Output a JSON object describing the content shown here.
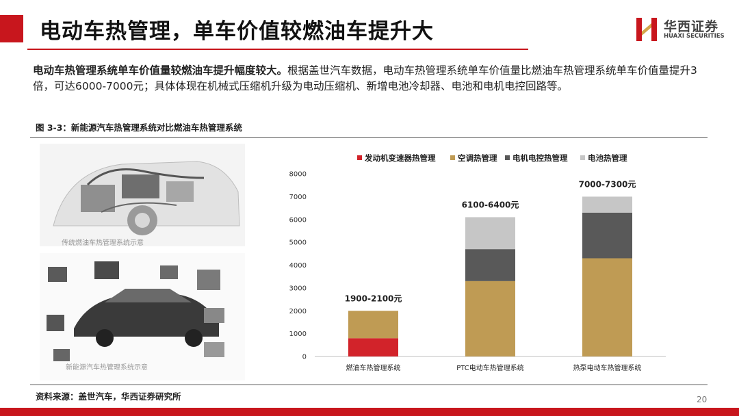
{
  "header": {
    "title": "电动车热管理，单车价值较燃油车提升大",
    "logo_cn": "华西证券",
    "logo_en": "HUAXI SECURITIES"
  },
  "summary": {
    "bold": "电动车热管理系统单车价值量较燃油车提升幅度较大。",
    "text": "根据盖世汽车数据，电动车热管理系统单车价值量比燃油车热管理系统单车价值量提升3倍，可达6000-7000元；具体体现在机械式压缩机升级为电动压缩机、新增电池冷却器、电池和电机电控回路等。"
  },
  "figure": {
    "label": "图 3-3：新能源汽车热管理系统对比燃油车热管理系统",
    "image_captions": [
      "传统燃油车热管理系统示意",
      "新能源汽车热管理系统示意"
    ]
  },
  "footer": {
    "source": "资料来源：盖世汽车，华西证券研究所",
    "page_number": "20"
  },
  "colors": {
    "brand_red": "#c8161d"
  },
  "chart_data": {
    "type": "bar",
    "stacked": true,
    "categories": [
      "燃油车热管理系统",
      "PTC电动车热管理系统",
      "热泵电动车热管理系统"
    ],
    "series": [
      {
        "name": "发动机变速器热管理",
        "color": "#d2232a",
        "values": [
          800,
          0,
          0
        ]
      },
      {
        "name": "空调热管理",
        "color": "#bf9b54",
        "values": [
          1200,
          3300,
          4300
        ]
      },
      {
        "name": "电机电控热管理",
        "color": "#595959",
        "values": [
          0,
          1400,
          2000
        ]
      },
      {
        "name": "电池热管理",
        "color": "#c6c6c6",
        "values": [
          0,
          1400,
          700
        ]
      }
    ],
    "annotations": [
      "1900-2100元",
      "6100-6400元",
      "7000-7300元"
    ],
    "ylim": [
      0,
      8000
    ],
    "yticks": [
      0,
      1000,
      2000,
      3000,
      4000,
      5000,
      6000,
      7000,
      8000
    ],
    "legend_position": "top",
    "grid": false
  }
}
